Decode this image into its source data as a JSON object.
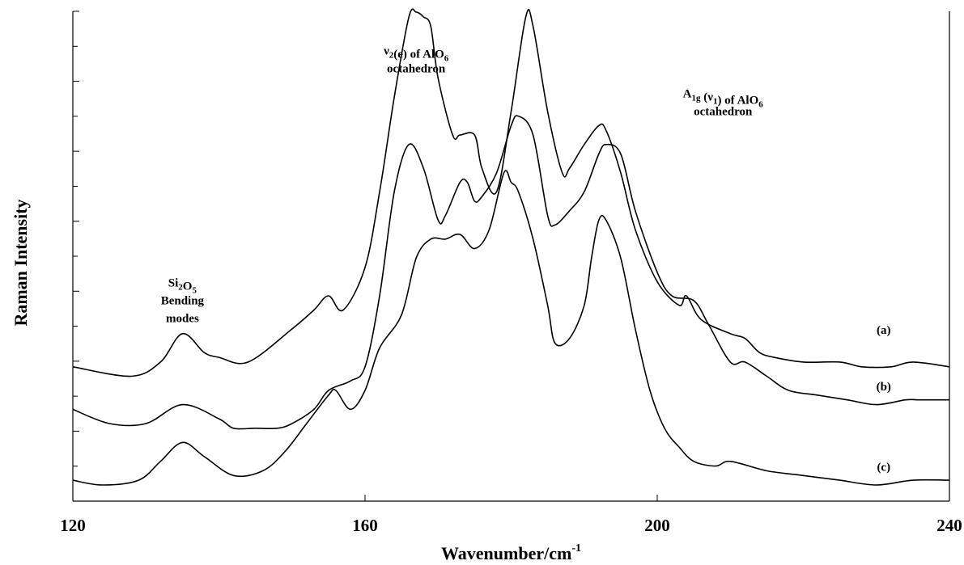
{
  "chart_data": {
    "type": "line",
    "title": "",
    "xlabel": "Wavenumber/cm",
    "xlabel_superscript": "-1",
    "ylabel": "Raman Intensity",
    "xlim": [
      120,
      240
    ],
    "ylim": [
      0,
      100
    ],
    "x_ticks": [
      120,
      160,
      200,
      240
    ],
    "y_ticks_labeled": false,
    "grid": false,
    "annotations": [
      {
        "id": "si2o5",
        "lines": [
          [
            [
              "Si",
              ""
            ],
            [
              "2",
              "sub"
            ],
            [
              "O",
              ""
            ],
            [
              "5",
              "sub"
            ]
          ],
          [
            [
              "Bending",
              ""
            ]
          ],
          [
            [
              "modes",
              ""
            ]
          ]
        ],
        "x": 135,
        "y": 42
      },
      {
        "id": "nu2",
        "lines": [
          [
            [
              "ν",
              ""
            ],
            [
              "2",
              "sub"
            ],
            [
              "(e) of AlO",
              ""
            ],
            [
              "6",
              "sub"
            ]
          ],
          [
            [
              "octahedron",
              ""
            ]
          ]
        ],
        "x": 167,
        "y": 91
      },
      {
        "id": "a1g",
        "lines": [
          [
            [
              "A",
              ""
            ],
            [
              "1g",
              "sub"
            ],
            [
              " (ν",
              ""
            ],
            [
              "1",
              "sub"
            ],
            [
              ") of AlO",
              ""
            ],
            [
              "6",
              "sub"
            ]
          ],
          [
            [
              "octahedron",
              ""
            ]
          ]
        ],
        "x": 209,
        "y": 82
      }
    ],
    "series": [
      {
        "name": "(a)",
        "label_x": 231,
        "label_y": 32,
        "x": [
          120,
          128,
          132,
          135,
          138,
          140,
          144,
          150,
          153,
          155,
          157,
          160,
          162,
          164,
          166,
          167,
          168,
          169,
          170,
          172,
          173,
          175,
          176,
          178,
          180,
          182,
          183,
          185,
          187,
          188,
          190,
          192,
          193,
          195,
          197,
          200,
          203,
          204,
          206,
          210,
          212,
          214,
          216,
          220,
          225,
          228,
          232,
          235,
          240
        ],
        "y": [
          25,
          23,
          26,
          32,
          28,
          27,
          26,
          33,
          37,
          40,
          37,
          46,
          62,
          82,
          99,
          100,
          99,
          97,
          86,
          74,
          74,
          74,
          67,
          62,
          79,
          99,
          97,
          79,
          66,
          67,
          72,
          76,
          75,
          66,
          54,
          43,
          38,
          40,
          35,
          32,
          31,
          28,
          27,
          26,
          26,
          25,
          25,
          26,
          25
        ]
      },
      {
        "name": "(b)",
        "label_x": 231,
        "label_y": 20,
        "x": [
          120,
          125,
          130,
          135,
          140,
          142,
          145,
          148,
          150,
          153,
          155,
          158,
          160,
          162,
          164,
          166,
          168,
          170,
          171,
          173,
          174,
          175,
          176,
          178,
          180,
          181,
          183,
          185,
          186,
          188,
          190,
          192,
          193,
          195,
          197,
          200,
          202,
          205,
          207,
          210,
          212,
          215,
          218,
          222,
          226,
          230,
          234,
          236,
          240
        ],
        "y": [
          16,
          13,
          13,
          17,
          14,
          12,
          12,
          12,
          13,
          16,
          20,
          22,
          25,
          40,
          62,
          72,
          67,
          56,
          57,
          64,
          64,
          60,
          61,
          66,
          76,
          78,
          74,
          57,
          55,
          58,
          62,
          70,
          72,
          70,
          58,
          45,
          40,
          39,
          34,
          26,
          26,
          23,
          20,
          19,
          18,
          17,
          18,
          18,
          18
        ]
      },
      {
        "name": "(c)",
        "label_x": 231,
        "label_y": 3,
        "x": [
          120,
          124,
          129,
          132,
          135,
          138,
          142,
          146,
          149,
          152,
          155,
          156,
          158,
          160,
          162,
          165,
          167,
          169,
          171,
          173,
          175,
          177,
          179,
          180,
          181,
          183,
          185,
          186,
          188,
          190,
          191,
          192,
          193,
          195,
          197,
          199,
          201,
          203,
          205,
          208,
          210,
          215,
          220,
          225,
          230,
          235,
          240
        ],
        "y": [
          1,
          0,
          1,
          5,
          9,
          6,
          2,
          3,
          7,
          13,
          19,
          20,
          16,
          20,
          29,
          36,
          48,
          52,
          52,
          53,
          50,
          54,
          66,
          64,
          62,
          52,
          38,
          30,
          31,
          38,
          48,
          56,
          56,
          48,
          33,
          20,
          12,
          8,
          5,
          4,
          5,
          3,
          2,
          1,
          0,
          1,
          1
        ]
      }
    ]
  }
}
